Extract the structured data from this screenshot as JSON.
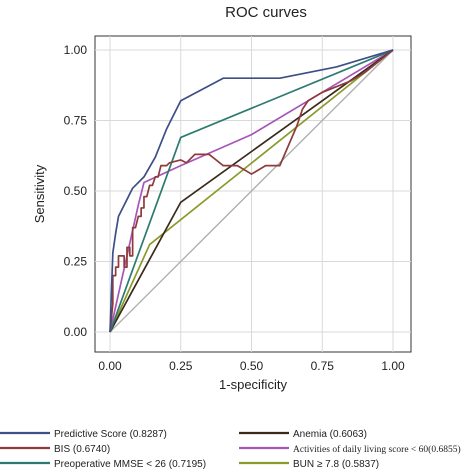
{
  "chart_data": {
    "type": "line",
    "title": "ROC curves",
    "xlabel": "1-specificity",
    "ylabel": "Sensitivity",
    "xlim": [
      0,
      1
    ],
    "ylim": [
      0,
      1
    ],
    "x_ticks": [
      "0.00",
      "0.25",
      "0.50",
      "0.75",
      "1.00"
    ],
    "y_ticks": [
      "0.00",
      "0.25",
      "0.50",
      "0.75",
      "1.00"
    ],
    "grid": true,
    "legend_position": "bottom",
    "reference_line": {
      "x": [
        0,
        1
      ],
      "y": [
        0,
        1
      ],
      "color": "#b0b0b0"
    },
    "series": [
      {
        "name": "Predictive Score (0.8287)",
        "color": "#3d4f86",
        "x": [
          0,
          0.01,
          0.02,
          0.03,
          0.05,
          0.08,
          0.12,
          0.16,
          0.2,
          0.25,
          0.4,
          0.6,
          0.8,
          1
        ],
        "y": [
          0,
          0.28,
          0.35,
          0.41,
          0.45,
          0.51,
          0.55,
          0.62,
          0.72,
          0.82,
          0.9,
          0.9,
          0.94,
          1
        ]
      },
      {
        "name": "BIS (0.6740)",
        "color": "#8e3b3b",
        "x": [
          0,
          0.01,
          0.01,
          0.02,
          0.02,
          0.03,
          0.03,
          0.05,
          0.05,
          0.06,
          0.06,
          0.07,
          0.07,
          0.08,
          0.08,
          0.09,
          0.1,
          0.11,
          0.11,
          0.12,
          0.12,
          0.13,
          0.14,
          0.15,
          0.16,
          0.17,
          0.18,
          0.2,
          0.21,
          0.25,
          0.27,
          0.3,
          0.35,
          0.4,
          0.45,
          0.5,
          0.55,
          0.6,
          0.63,
          0.66,
          0.68,
          0.7,
          0.75,
          0.8,
          0.85,
          0.9,
          1
        ],
        "y": [
          0,
          0.1,
          0.2,
          0.2,
          0.23,
          0.23,
          0.27,
          0.27,
          0.23,
          0.23,
          0.3,
          0.3,
          0.27,
          0.27,
          0.37,
          0.37,
          0.41,
          0.41,
          0.44,
          0.44,
          0.48,
          0.48,
          0.52,
          0.52,
          0.55,
          0.55,
          0.59,
          0.59,
          0.6,
          0.61,
          0.6,
          0.63,
          0.63,
          0.59,
          0.59,
          0.56,
          0.59,
          0.59,
          0.66,
          0.73,
          0.79,
          0.82,
          0.85,
          0.87,
          0.89,
          0.92,
          1
        ]
      },
      {
        "name": "Preoperative MMSE < 26 (0.7195)",
        "color": "#2c7a70",
        "x": [
          0,
          0.25,
          1
        ],
        "y": [
          0,
          0.69,
          1
        ]
      },
      {
        "name": "Anemia (0.6063)",
        "color": "#3b2a1a",
        "x": [
          0,
          0.25,
          1
        ],
        "y": [
          0,
          0.46,
          1
        ]
      },
      {
        "name": "Activities of daily living score < 60(0.6855)",
        "color": "#a755b8",
        "x": [
          0,
          0.08,
          0.1,
          0.12,
          0.25,
          0.5,
          0.75,
          1
        ],
        "y": [
          0,
          0.36,
          0.45,
          0.53,
          0.59,
          0.7,
          0.85,
          1
        ]
      },
      {
        "name": "BUN ≥ 7.8 (0.5837)",
        "color": "#8a9a2b",
        "x": [
          0,
          0.14,
          1
        ],
        "y": [
          0,
          0.31,
          1
        ]
      }
    ]
  }
}
